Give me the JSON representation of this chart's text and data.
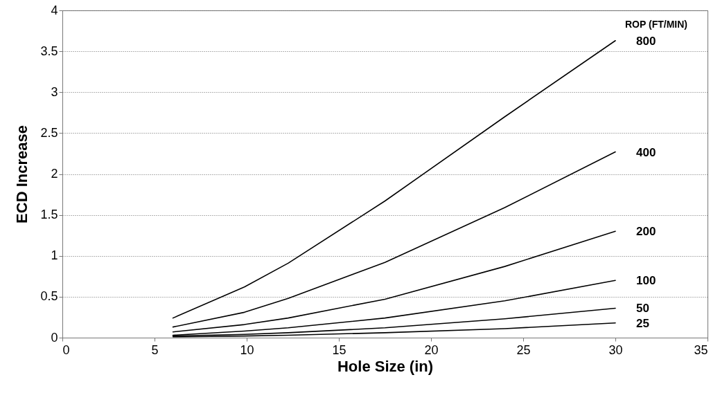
{
  "chart_data": {
    "type": "line",
    "xlabel": "Hole Size (in)",
    "ylabel": "ECD Increase",
    "legend_title": "ROP (FT/MIN)",
    "x": [
      6,
      9.875,
      12.25,
      17.5,
      24,
      30
    ],
    "series": [
      {
        "name": "800",
        "color": "#000000",
        "values": [
          0.24,
          0.62,
          0.91,
          1.67,
          2.7,
          3.63
        ]
      },
      {
        "name": "400",
        "color": "#000000",
        "values": [
          0.13,
          0.31,
          0.48,
          0.92,
          1.59,
          2.27
        ]
      },
      {
        "name": "200",
        "color": "#000000",
        "values": [
          0.07,
          0.16,
          0.24,
          0.47,
          0.87,
          1.3
        ]
      },
      {
        "name": "100",
        "color": "#000000",
        "values": [
          0.03,
          0.08,
          0.12,
          0.24,
          0.45,
          0.7
        ]
      },
      {
        "name": "50",
        "color": "#000000",
        "values": [
          0.02,
          0.04,
          0.06,
          0.12,
          0.23,
          0.36
        ]
      },
      {
        "name": "25",
        "color": "#000000",
        "values": [
          0.01,
          0.02,
          0.03,
          0.06,
          0.11,
          0.18
        ]
      }
    ],
    "xlim": [
      0,
      35
    ],
    "xticks": [
      0,
      5,
      10,
      15,
      20,
      25,
      30,
      35
    ],
    "ylim": [
      0,
      4
    ],
    "yticks": [
      0,
      0.5,
      1,
      1.5,
      2,
      2.5,
      3,
      3.5,
      4
    ],
    "grid": "y",
    "legend": false,
    "marker": "none",
    "line_style": "solid"
  }
}
